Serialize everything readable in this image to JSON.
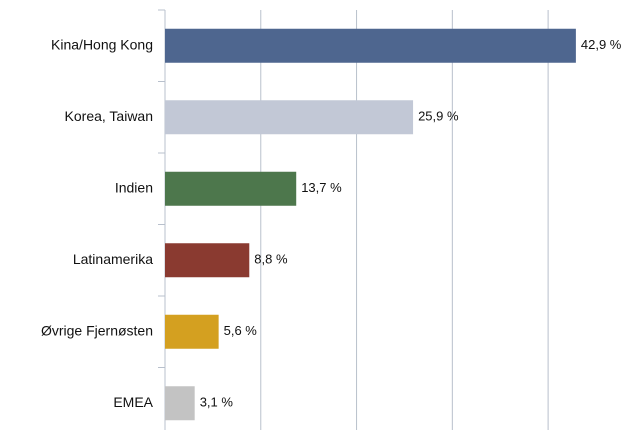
{
  "chart_data": {
    "type": "bar",
    "orientation": "horizontal",
    "categories": [
      "Kina/Hong Kong",
      "Korea, Taiwan",
      "Indien",
      "Latinamerika",
      "Øvrige Fjernøsten",
      "EMEA"
    ],
    "values": [
      42.9,
      25.9,
      13.7,
      8.8,
      5.6,
      3.1
    ],
    "value_labels": [
      "42,9 %",
      "25,9 %",
      "13,7 %",
      "8,8 %",
      "5,6 %",
      "3,1 %"
    ],
    "colors": [
      "#4e668f",
      "#c2c8d6",
      "#4d774c",
      "#8a3a30",
      "#d4a020",
      "#c3c3c3"
    ],
    "xlim": [
      0,
      45
    ],
    "xticks": [
      0,
      10,
      20,
      30,
      40
    ],
    "grid": true
  }
}
